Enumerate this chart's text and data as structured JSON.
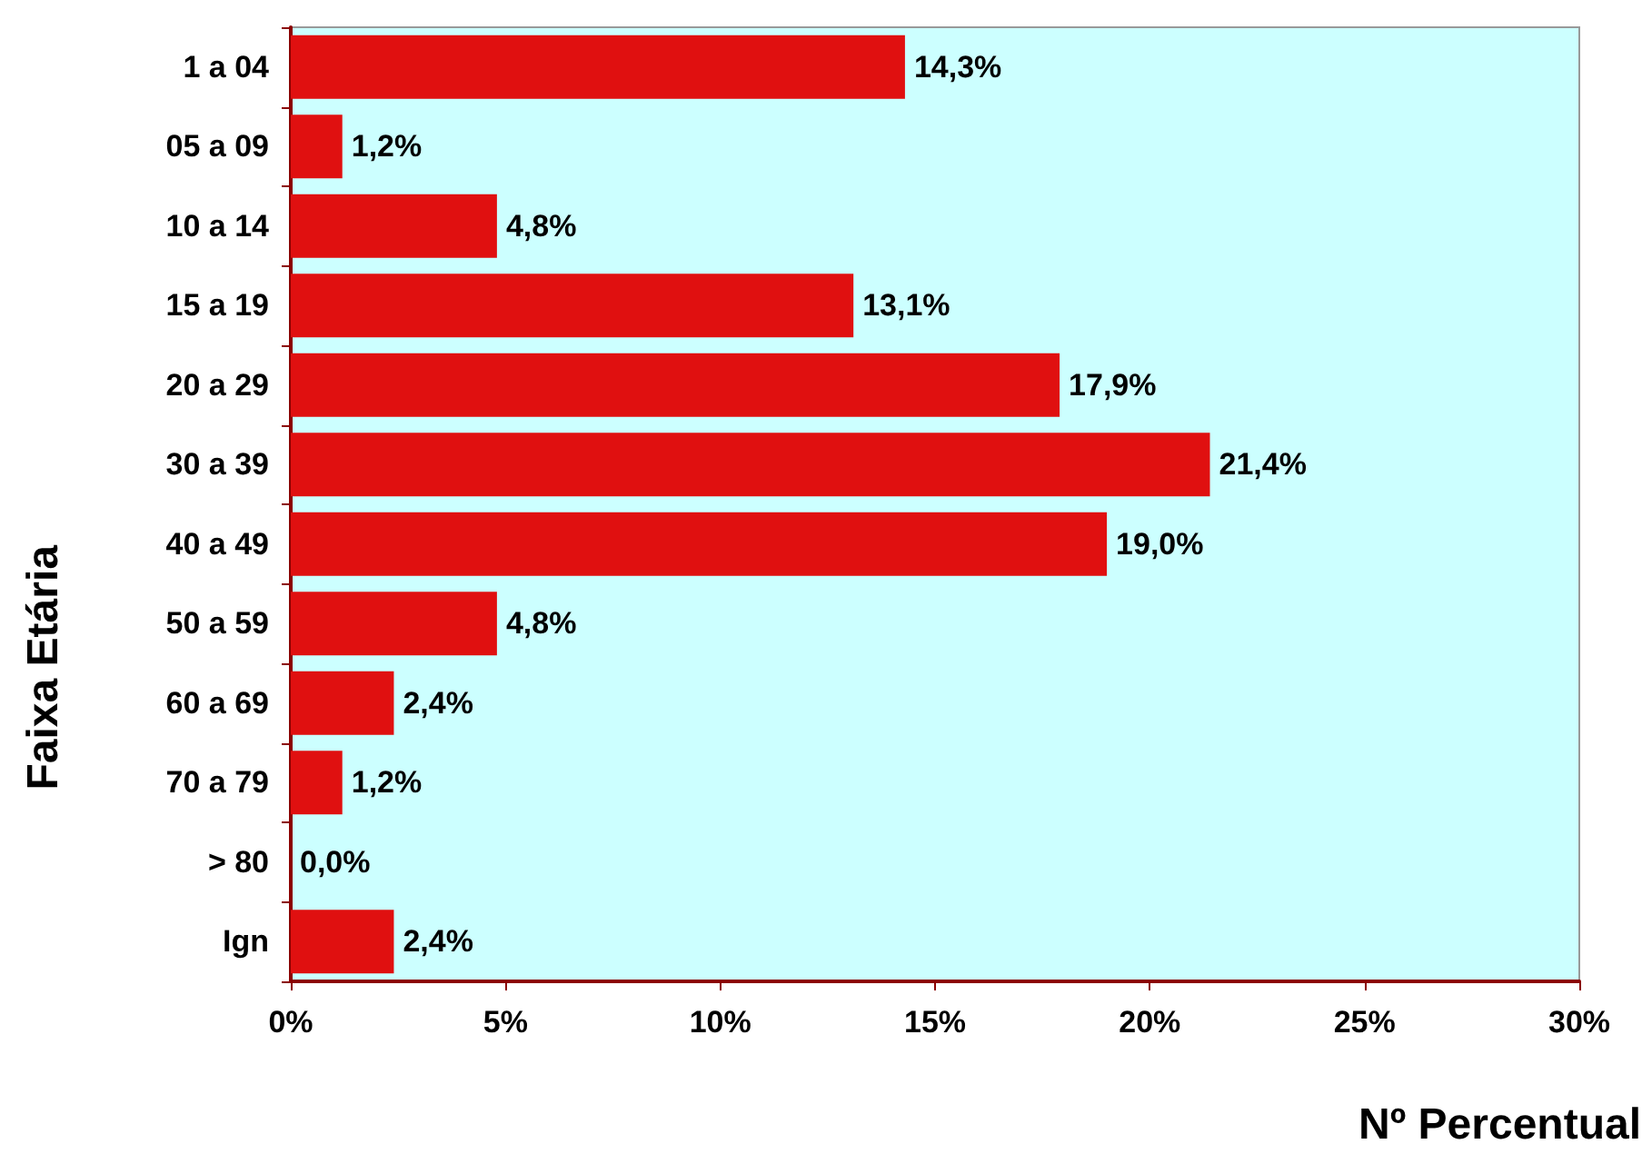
{
  "chart_data": {
    "type": "bar",
    "orientation": "horizontal",
    "xlabel": "Nº Percentual",
    "ylabel": "Faixa Etária",
    "categories": [
      "1 a 04",
      "05 a 09",
      "10 a 14",
      "15 a 19",
      "20 a 29",
      "30 a 39",
      "40 a 49",
      "50 a 59",
      "60 a 69",
      "70 a 79",
      "> 80",
      "Ign"
    ],
    "values": [
      14.3,
      1.2,
      4.8,
      13.1,
      17.9,
      21.4,
      19.0,
      4.8,
      2.4,
      1.2,
      0.0,
      2.4
    ],
    "value_labels": [
      "14,3%",
      "1,2%",
      "4,8%",
      "13,1%",
      "17,9%",
      "21,4%",
      "19,0%",
      "4,8%",
      "2,4%",
      "1,2%",
      "0,0%",
      "2,4%"
    ],
    "color": "#e01010",
    "xlim": [
      0,
      30
    ],
    "xticks": [
      {
        "value": 0,
        "label": "0%"
      },
      {
        "value": 5,
        "label": "5%"
      },
      {
        "value": 10,
        "label": "10%"
      },
      {
        "value": 15,
        "label": "15%"
      },
      {
        "value": 20,
        "label": "20%"
      },
      {
        "value": 25,
        "label": "25%"
      },
      {
        "value": 30,
        "label": "30%"
      }
    ],
    "grid": false
  }
}
